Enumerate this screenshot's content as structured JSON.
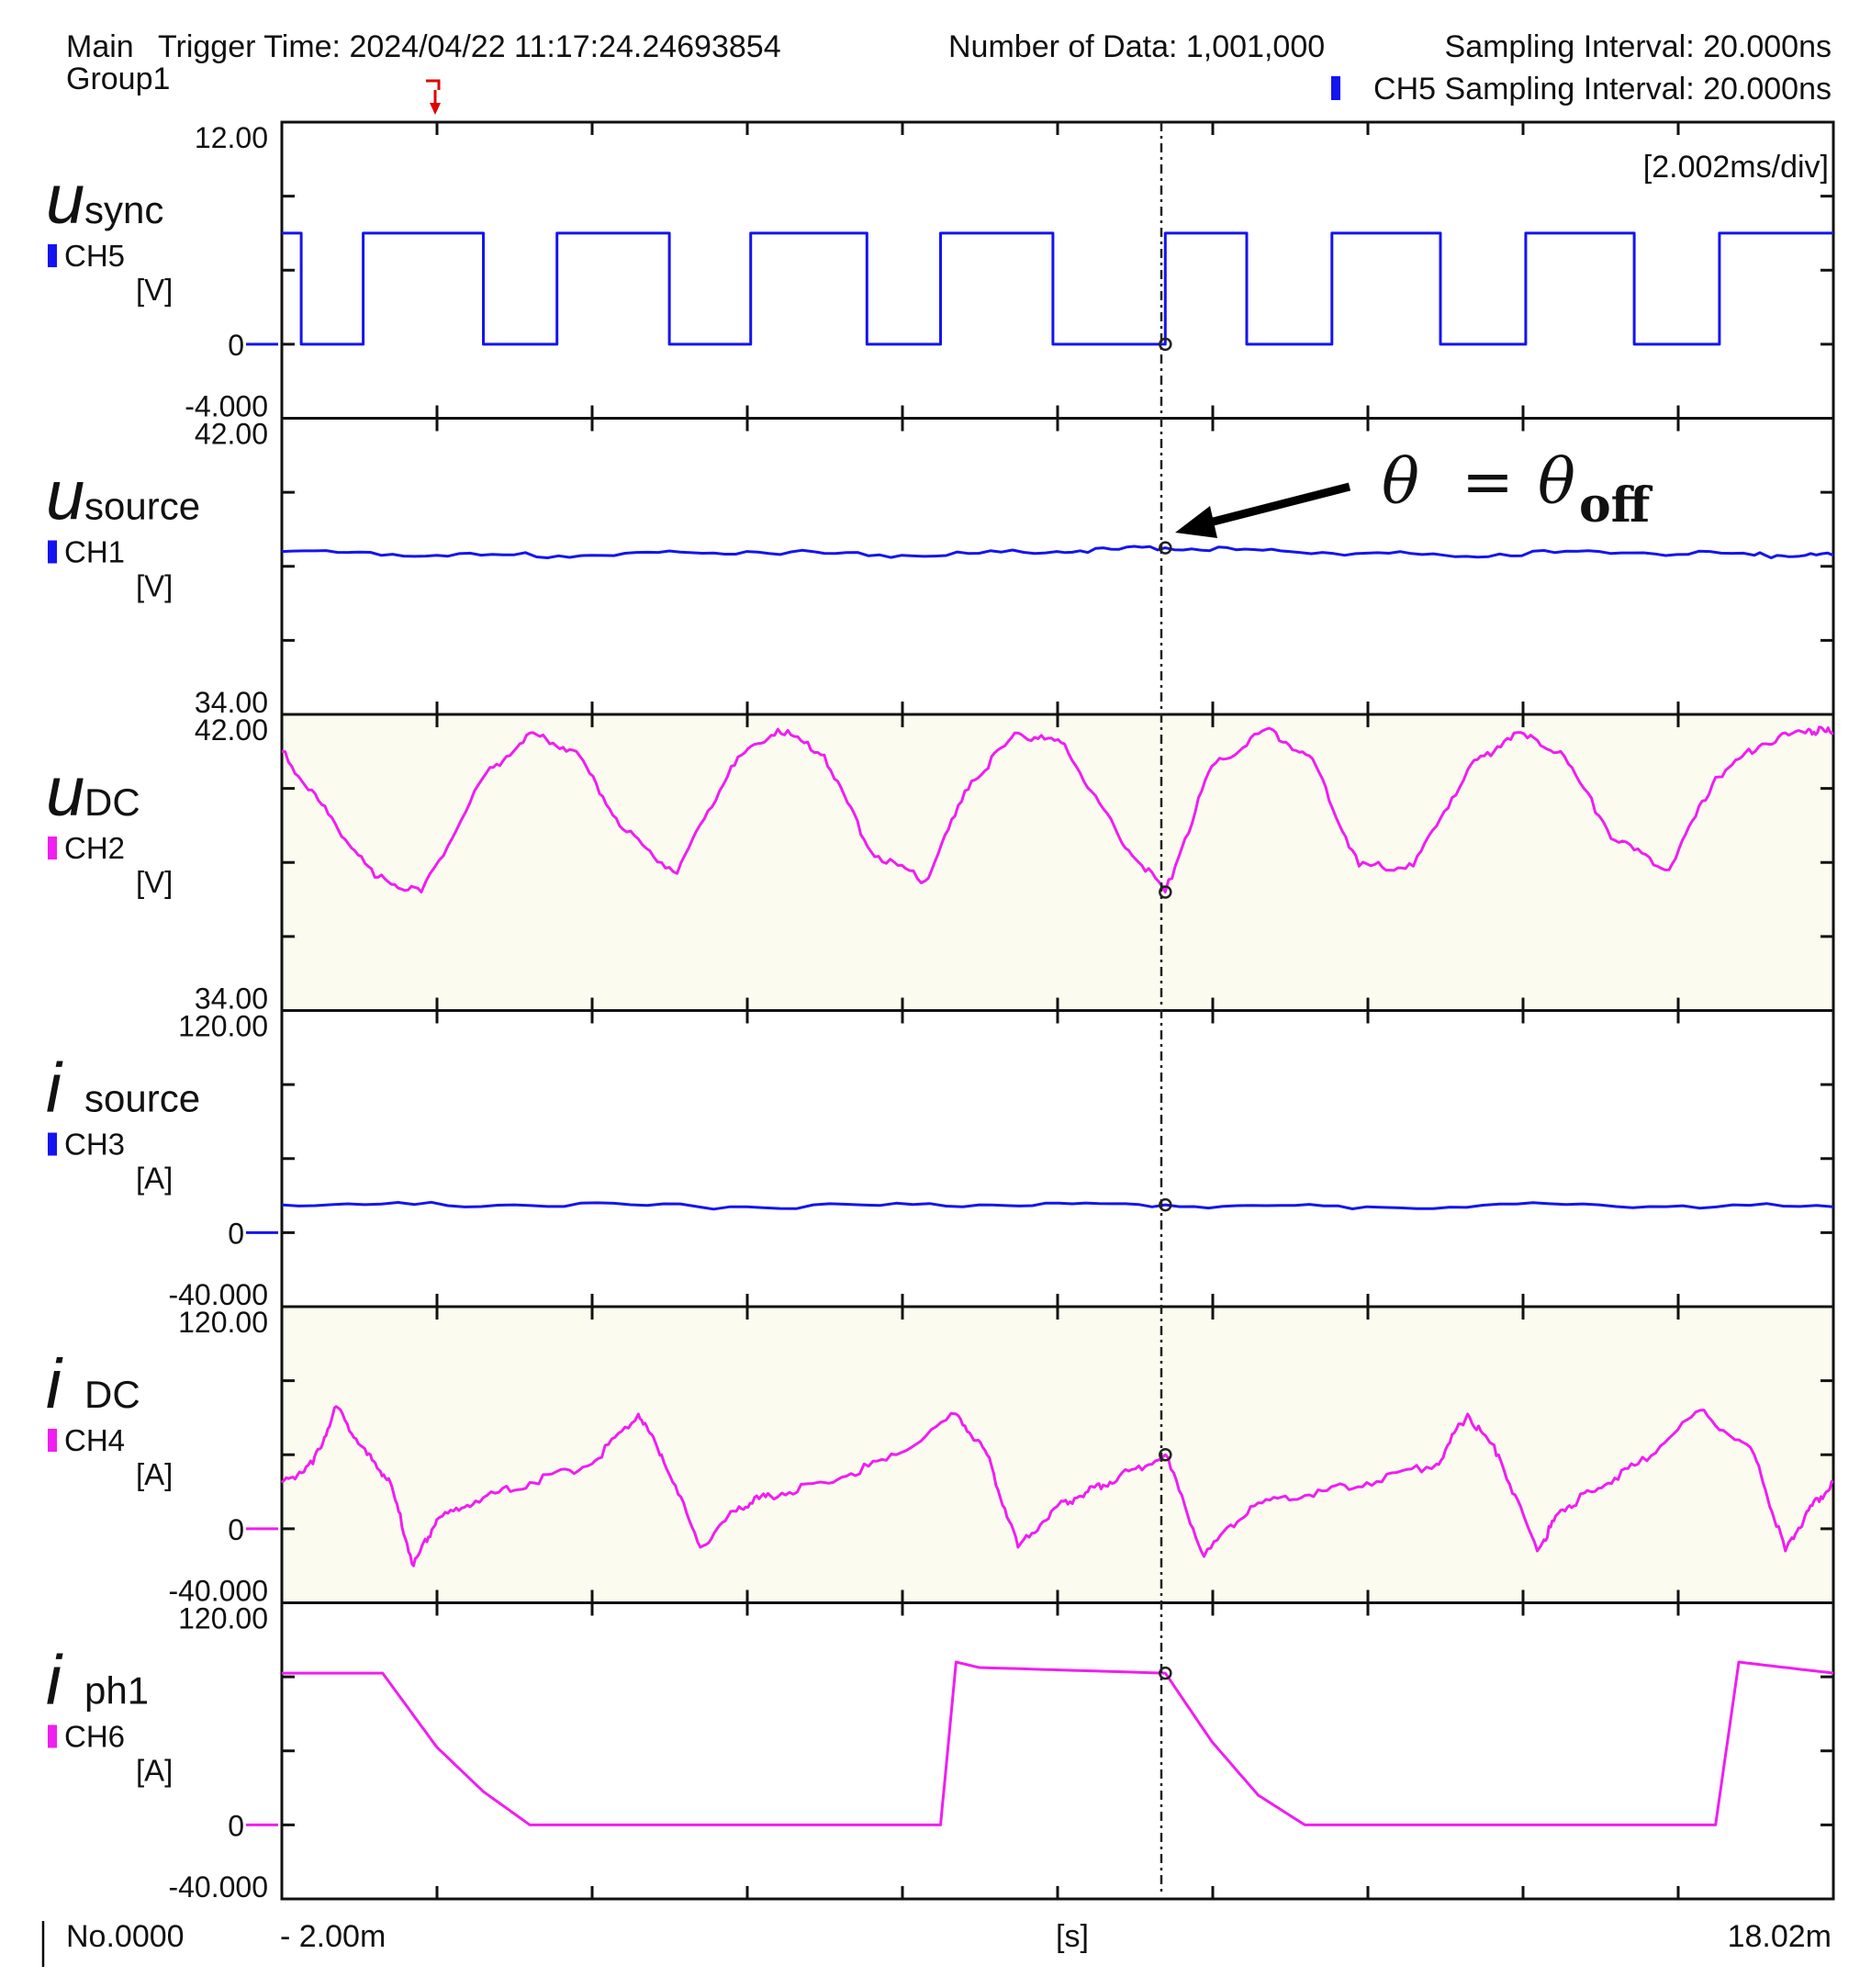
{
  "header": {
    "main": "Main",
    "trigger_time": "Trigger Time: 2024/04/22 11:17:24.24693854",
    "number_of_data": "Number of Data: 1,001,000",
    "sampling_interval": "Sampling Interval:  20.000ns",
    "group": "Group1",
    "ch5_sampling_interval": "CH5 Sampling Interval:  20.000ns"
  },
  "timebase": "[2.002ms/div]",
  "footer": {
    "record_no": "No.0000",
    "x_start": "- 2.00m",
    "x_unit": "[s]",
    "x_end": "18.02m"
  },
  "annotation": {
    "theta": "θ",
    "equals": "=",
    "theta_off": "θ",
    "sub": "off"
  },
  "colors": {
    "blue": "#1414f0",
    "magenta": "#f01ef0",
    "cursor": "#222222",
    "shaded_bg": "#fbfbf0"
  },
  "chart_data": {
    "type": "line",
    "x_range_ms": [
      -2.0,
      18.02
    ],
    "cursor_x_ms": 9.4,
    "panels": [
      {
        "var": "u",
        "sub": "sync",
        "channel": "CH5",
        "unit": "[V]",
        "color": "#1414f0",
        "top": "12.00",
        "bottom": "-4.000",
        "zero_label": "0",
        "ylim": [
          -4,
          12
        ],
        "shaded": false,
        "series_kind": "square",
        "high": 6.0,
        "low": 0.0,
        "edges_ms": [
          -1.75,
          -0.95,
          0.6,
          1.55,
          3.0,
          4.05,
          5.55,
          6.5,
          7.95,
          9.4,
          10.45,
          11.55,
          12.95,
          14.05,
          15.45,
          16.55
        ],
        "start_level": "high"
      },
      {
        "var": "u",
        "sub": "source",
        "channel": "CH1",
        "unit": "[V]",
        "color": "#1414f0",
        "top": "42.00",
        "bottom": "34.00",
        "zero_label": "",
        "ylim": [
          34,
          42
        ],
        "shaded": false,
        "series_kind": "points",
        "x_ms": [
          -2.0,
          0.0,
          2.0,
          4.0,
          6.0,
          8.0,
          9.4,
          11.0,
          13.0,
          15.0,
          17.0,
          18.02
        ],
        "y": [
          38.4,
          38.3,
          38.3,
          38.4,
          38.3,
          38.4,
          38.5,
          38.4,
          38.3,
          38.4,
          38.3,
          38.3
        ]
      },
      {
        "var": "u",
        "sub": "DC",
        "channel": "CH2",
        "unit": "[V]",
        "color": "#f01ef0",
        "top": "42.00",
        "bottom": "34.00",
        "zero_label": "",
        "ylim": [
          34,
          42
        ],
        "shaded": true,
        "series_kind": "points",
        "x_ms": [
          -2.0,
          -1.4,
          -0.8,
          -0.2,
          0.6,
          1.2,
          1.8,
          2.4,
          3.1,
          3.8,
          4.4,
          5.0,
          5.6,
          6.3,
          6.9,
          7.5,
          8.1,
          8.8,
          9.4,
          10.0,
          10.7,
          11.3,
          11.9,
          12.6,
          13.3,
          13.9,
          14.5,
          15.2,
          15.9,
          16.5,
          17.1,
          17.7,
          18.02
        ],
        "y": [
          41.0,
          39.3,
          37.6,
          37.2,
          40.3,
          41.5,
          41.0,
          38.9,
          37.7,
          40.6,
          41.6,
          40.9,
          38.3,
          37.5,
          40.2,
          41.5,
          41.2,
          38.7,
          37.2,
          40.6,
          41.6,
          40.8,
          37.9,
          37.9,
          40.5,
          41.5,
          41.0,
          38.6,
          37.8,
          40.3,
          41.2,
          41.6,
          41.5
        ]
      },
      {
        "var": "i",
        "sub": "source",
        "channel": "CH3",
        "unit": "[A]",
        "color": "#1414f0",
        "top": "120.00",
        "bottom": "-40.000",
        "zero_label": "0",
        "ylim": [
          -40,
          120
        ],
        "shaded": false,
        "series_kind": "points",
        "x_ms": [
          -2.0,
          1.0,
          4.0,
          7.0,
          9.4,
          12.0,
          15.0,
          18.02
        ],
        "y": [
          15,
          15,
          14,
          15,
          15,
          14,
          15,
          14
        ]
      },
      {
        "var": "i",
        "sub": "DC",
        "channel": "CH4",
        "unit": "[A]",
        "color": "#f01ef0",
        "top": "120.00",
        "bottom": "-40.000",
        "zero_label": "0",
        "ylim": [
          -40,
          120
        ],
        "shaded": true,
        "series_kind": "points",
        "x_ms": [
          -2.0,
          -1.6,
          -1.3,
          -0.9,
          -0.6,
          -0.3,
          0.0,
          0.5,
          1.2,
          2.0,
          2.6,
          2.9,
          3.4,
          3.9,
          4.3,
          5.0,
          5.8,
          6.7,
          7.1,
          7.5,
          8.0,
          8.4,
          8.8,
          9.4,
          9.9,
          10.5,
          11.2,
          12.0,
          12.9,
          13.3,
          13.7,
          14.2,
          14.5,
          14.9,
          15.5,
          16.3,
          17.0,
          17.4,
          17.7,
          18.02
        ],
        "y": [
          25,
          35,
          66,
          40,
          25,
          -20,
          5,
          15,
          25,
          35,
          62,
          40,
          -10,
          12,
          18,
          25,
          37,
          62,
          40,
          -10,
          12,
          20,
          28,
          40,
          -15,
          12,
          18,
          25,
          35,
          62,
          40,
          -12,
          10,
          20,
          35,
          64,
          40,
          -12,
          10,
          25
        ]
      },
      {
        "var": "i",
        "sub": "ph1",
        "channel": "CH6",
        "unit": "[A]",
        "color": "#f01ef0",
        "top": "120.00",
        "bottom": "-40.000",
        "zero_label": "0",
        "ylim": [
          -40,
          120
        ],
        "shaded": false,
        "series_kind": "points",
        "x_ms": [
          -2.0,
          -0.7,
          0.0,
          0.6,
          1.2,
          6.5,
          6.7,
          7.0,
          9.4,
          10.0,
          10.6,
          11.2,
          16.5,
          16.8,
          17.2,
          18.02
        ],
        "y": [
          82,
          82,
          42,
          18,
          0,
          0,
          88,
          85,
          82,
          45,
          16,
          0,
          0,
          88,
          86,
          82
        ]
      }
    ]
  }
}
